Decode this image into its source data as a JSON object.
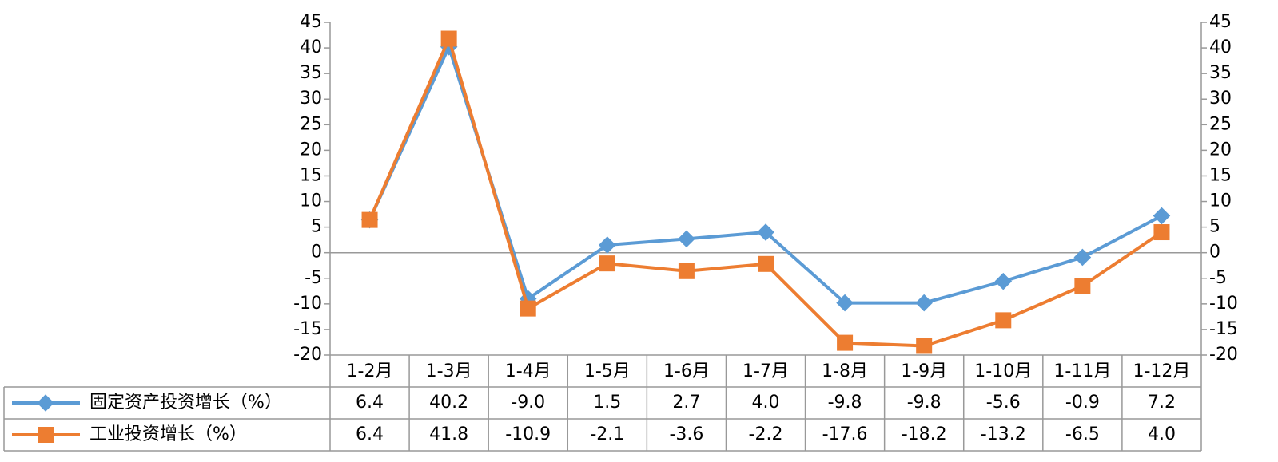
{
  "chart_data": {
    "type": "line",
    "categories": [
      "1-2月",
      "1-3月",
      "1-4月",
      "1-5月",
      "1-6月",
      "1-7月",
      "1-8月",
      "1-9月",
      "1-10月",
      "1-11月",
      "1-12月"
    ],
    "series": [
      {
        "name": "固定资产投资增长（%）",
        "color": "#5b9bd5",
        "marker": "diamond",
        "values": [
          6.4,
          40.2,
          -9.0,
          1.5,
          2.7,
          4.0,
          -9.8,
          -9.8,
          -5.6,
          -0.9,
          7.2
        ],
        "value_labels": [
          "6.4",
          "40.2",
          "-9.0",
          "1.5",
          "2.7",
          "4.0",
          "-9.8",
          "-9.8",
          "-5.6",
          "-0.9",
          "7.2"
        ]
      },
      {
        "name": "工业投资增长（%）",
        "color": "#ed7d31",
        "marker": "square",
        "values": [
          6.4,
          41.8,
          -10.9,
          -2.1,
          -3.6,
          -2.2,
          -17.6,
          -18.2,
          -13.2,
          -6.5,
          4.0
        ],
        "value_labels": [
          "6.4",
          "41.8",
          "-10.9",
          "-2.1",
          "-3.6",
          "-2.2",
          "-17.6",
          "-18.2",
          "-13.2",
          "-6.5",
          "4.0"
        ]
      }
    ],
    "ylim": [
      -20,
      45
    ],
    "yticks": [
      -20,
      -15,
      -10,
      -5,
      0,
      5,
      10,
      15,
      20,
      25,
      30,
      35,
      40,
      45
    ],
    "y2lim": [
      -20,
      45
    ],
    "y2ticks": [
      -20,
      -15,
      -10,
      -5,
      0,
      5,
      10,
      15,
      20,
      25,
      30,
      35,
      40,
      45
    ]
  }
}
